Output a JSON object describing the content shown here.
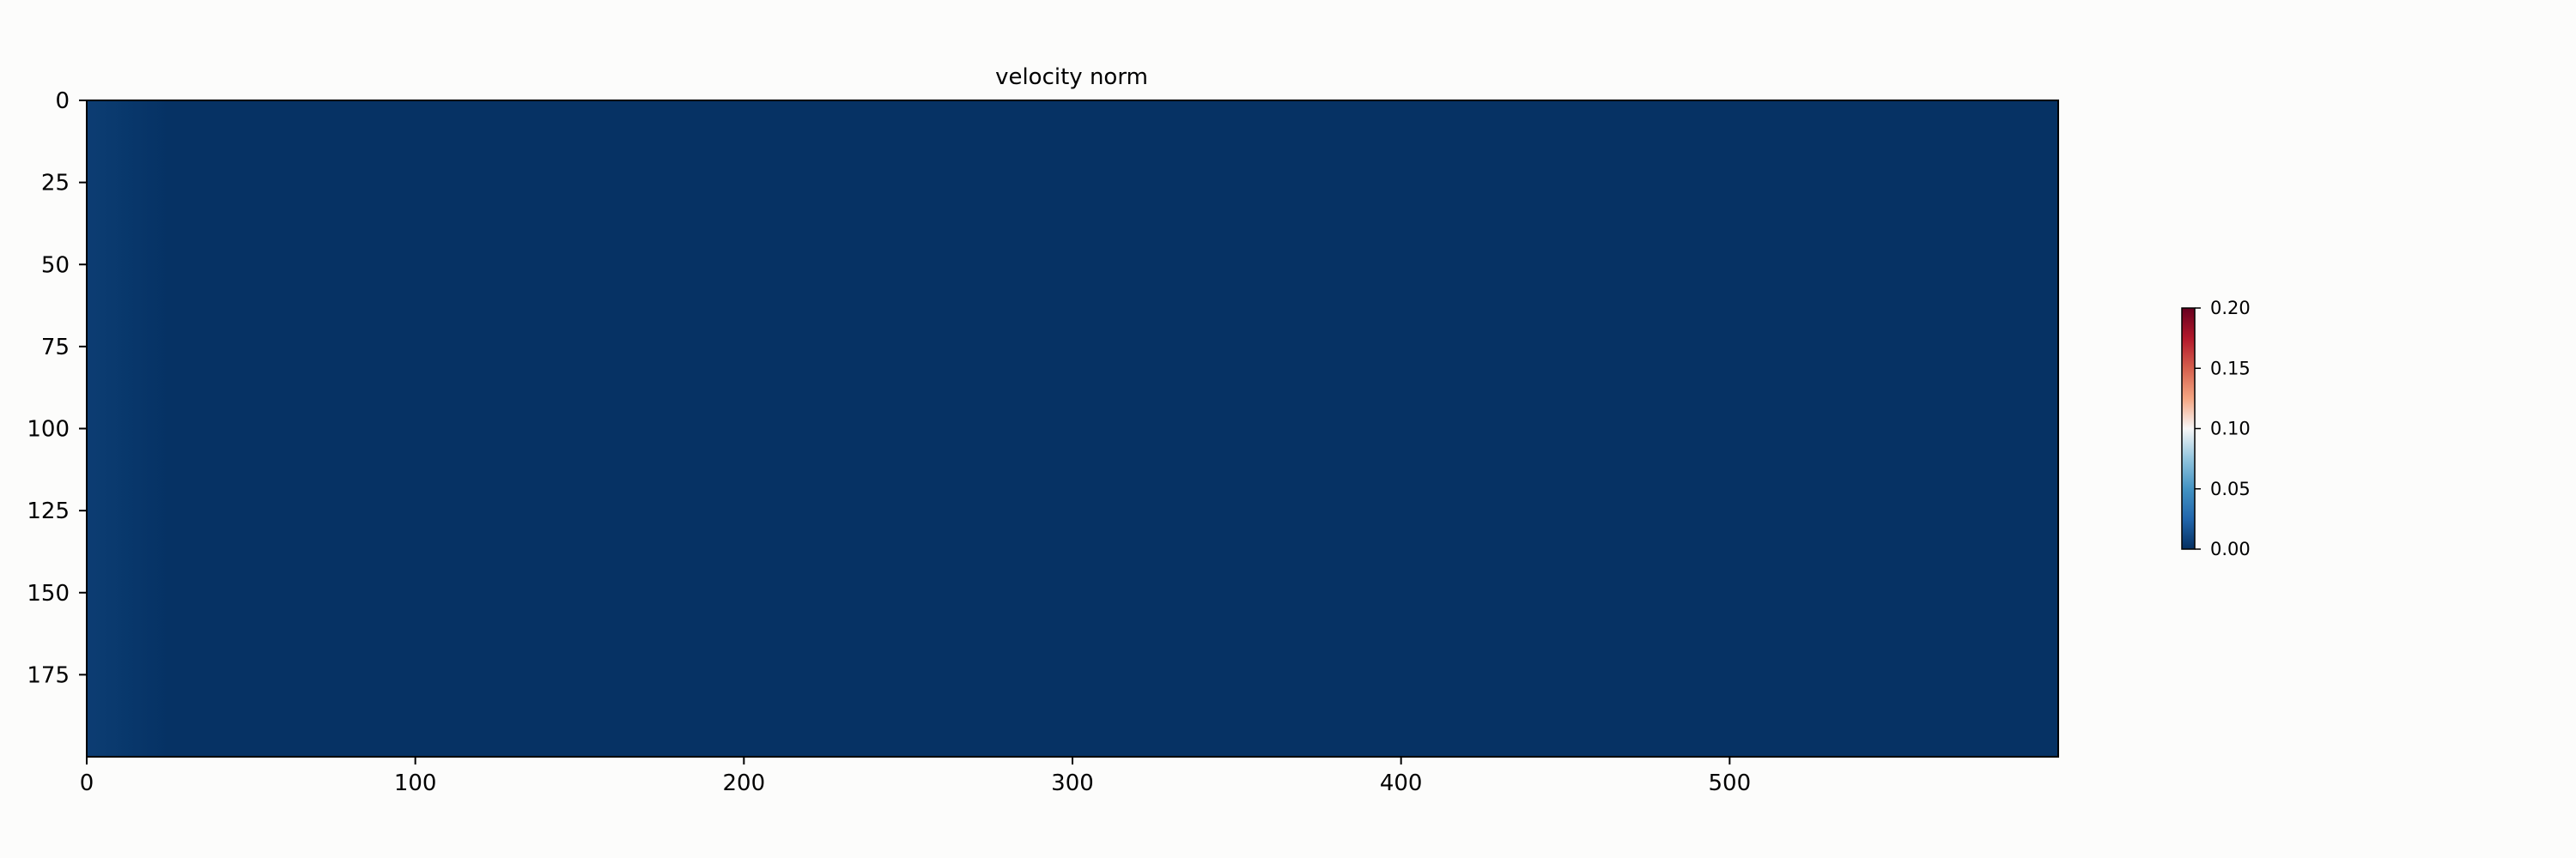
{
  "chart_data": {
    "type": "heatmap",
    "title": "velocity norm",
    "xlabel": "",
    "ylabel": "",
    "xlim": [
      0,
      600
    ],
    "ylim": [
      200,
      0
    ],
    "x_ticks": [
      0,
      100,
      200,
      300,
      400,
      500
    ],
    "y_ticks": [
      0,
      25,
      50,
      75,
      100,
      125,
      150,
      175
    ],
    "x_tick_labels": [
      "0",
      "100",
      "200",
      "300",
      "400",
      "500"
    ],
    "y_tick_labels": [
      "0",
      "25",
      "50",
      "75",
      "100",
      "125",
      "150",
      "175"
    ],
    "grid_shape": [
      200,
      600
    ],
    "value_profile": {
      "columns": [
        0,
        5,
        10,
        15,
        20,
        25,
        600
      ],
      "values": [
        0.006,
        0.005,
        0.004,
        0.003,
        0.002,
        0.001,
        0.001
      ]
    },
    "colormap": "RdBu_r",
    "colormap_stops": [
      "#053061",
      "#2166ac",
      "#4393c3",
      "#92c5de",
      "#f7f7f7",
      "#f4a582",
      "#d6604d",
      "#b2182b",
      "#67001f"
    ],
    "colorbar": {
      "vmin": 0.0,
      "vmax": 0.2,
      "ticks": [
        0.0,
        0.05,
        0.1,
        0.15,
        0.2
      ],
      "tick_labels": [
        "0.00",
        "0.05",
        "0.10",
        "0.15",
        "0.20"
      ]
    },
    "grid": false
  }
}
